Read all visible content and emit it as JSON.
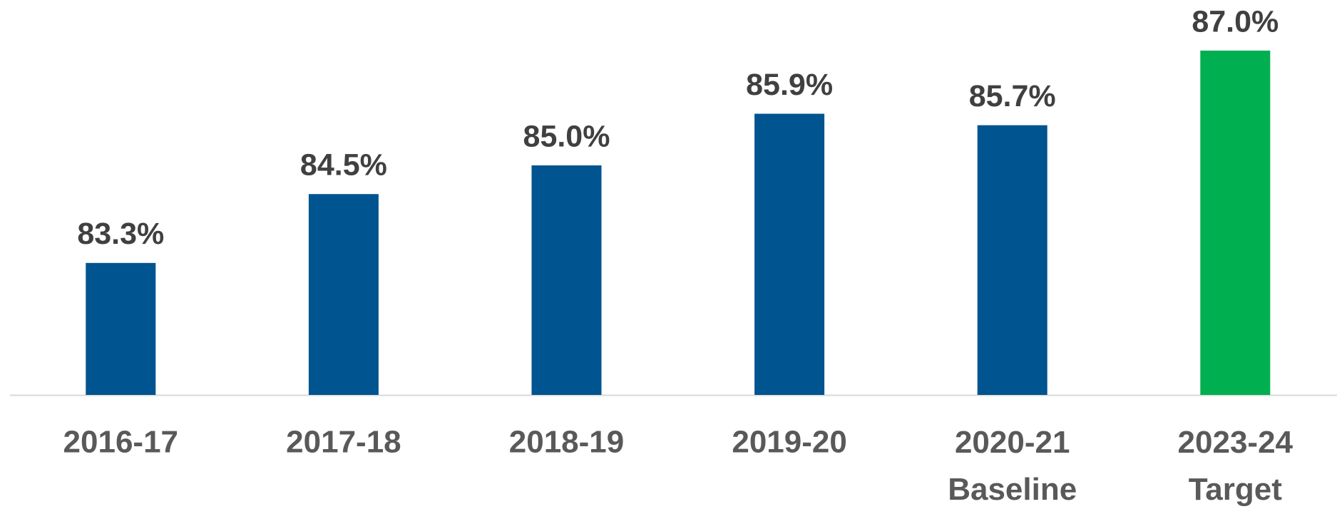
{
  "chart_data": {
    "type": "bar",
    "categories": [
      "2016-17",
      "2017-18",
      "2018-19",
      "2019-20",
      "2020-21 Baseline",
      "2023-24 Target"
    ],
    "values": [
      83.3,
      84.5,
      85.0,
      85.9,
      85.7,
      87.0
    ],
    "value_labels": [
      "83.3%",
      "84.5%",
      "85.0%",
      "85.9%",
      "85.7%",
      "87.0%"
    ],
    "colors": [
      "#00548f",
      "#00548f",
      "#00548f",
      "#00548f",
      "#00548f",
      "#00af50"
    ],
    "ylim": [
      81,
      88
    ]
  }
}
